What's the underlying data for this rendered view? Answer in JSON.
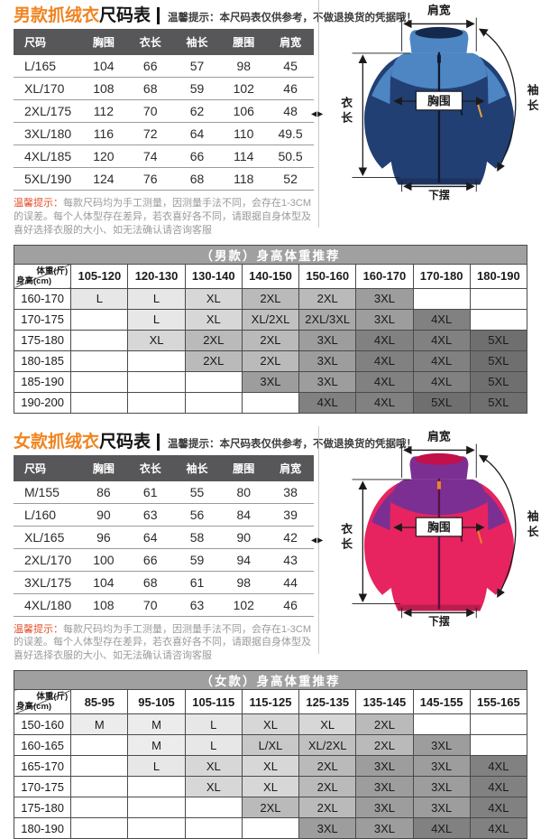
{
  "ui": {
    "divider_handle": "◀▶"
  },
  "colors": {
    "accent_orange": "#f08421",
    "note_red": "#e4502e",
    "size_table_header_bg": "#57575a",
    "rec_title_bg": "#a0a0a0",
    "size_shades": {
      "M": "#ececec",
      "L": "#e7e7e7",
      "XL": "#d7d7d7",
      "L/XL": "#c8c8c8",
      "XL/2XL": "#c0c0c0",
      "2XL": "#bababa",
      "2XL/3XL": "#a9a9a9",
      "3XL": "#9d9d9d",
      "4XL": "#818181",
      "5XL": "#6f6f6f"
    }
  },
  "sections": [
    {
      "id": "men",
      "title_accent": "男款抓绒衣",
      "title_rest": "尺码表",
      "title_note": "温馨提示：本尺码表仅供参考，不做退换货的凭据哦！",
      "size_table": {
        "headers": [
          "尺码",
          "胸围",
          "衣长",
          "袖长",
          "腰围",
          "肩宽"
        ],
        "rows": [
          [
            "L/165",
            "104",
            "66",
            "57",
            "98",
            "45"
          ],
          [
            "XL/170",
            "108",
            "68",
            "59",
            "102",
            "46"
          ],
          [
            "2XL/175",
            "112",
            "70",
            "62",
            "106",
            "48"
          ],
          [
            "3XL/180",
            "116",
            "72",
            "64",
            "110",
            "49.5"
          ],
          [
            "4XL/185",
            "120",
            "74",
            "66",
            "114",
            "50.5"
          ],
          [
            "5XL/190",
            "124",
            "76",
            "68",
            "118",
            "52"
          ]
        ]
      },
      "note_label": "温馨提示：",
      "note_text": "每款尺码均为手工测量，因测量手法不同，会存在1-3CM的误差。每个人体型存在差异，若衣喜好各不同，请跟据自身体型及喜好选择衣服的大小、如无法确认请咨询客服",
      "jacket": {
        "label_shoulder": "肩宽",
        "label_length": "衣长",
        "label_chest": "胸围",
        "label_sleeve": "袖长",
        "label_hem": "下摆",
        "yoke_color": "#4d86c3",
        "body_color": "#223f73",
        "collar_inner": "#15294e",
        "zip_color": "#101a30",
        "pull_color": "#e8a33d"
      },
      "rec_table": {
        "title": "（男款）身高体重推荐",
        "corner_top": "体重(斤)",
        "corner_bottom": "身高(cm)",
        "weight_cols": [
          "105-120",
          "120-130",
          "130-140",
          "140-150",
          "150-160",
          "160-170",
          "170-180",
          "180-190"
        ],
        "rows": [
          {
            "height": "160-170",
            "cells": [
              "L",
              "L",
              "XL",
              "2XL",
              "2XL",
              "3XL",
              "",
              ""
            ]
          },
          {
            "height": "170-175",
            "cells": [
              "",
              "L",
              "XL",
              "XL/2XL",
              "2XL/3XL",
              "3XL",
              "4XL",
              ""
            ]
          },
          {
            "height": "175-180",
            "cells": [
              "",
              "XL",
              "2XL",
              "2XL",
              "3XL",
              "4XL",
              "4XL",
              "5XL"
            ]
          },
          {
            "height": "180-185",
            "cells": [
              "",
              "",
              "2XL",
              "2XL",
              "3XL",
              "4XL",
              "4XL",
              "5XL"
            ]
          },
          {
            "height": "185-190",
            "cells": [
              "",
              "",
              "",
              "3XL",
              "3XL",
              "4XL",
              "4XL",
              "5XL"
            ]
          },
          {
            "height": "190-200",
            "cells": [
              "",
              "",
              "",
              "",
              "4XL",
              "4XL",
              "5XL",
              "5XL"
            ]
          }
        ]
      }
    },
    {
      "id": "women",
      "title_accent": "女款抓绒衣",
      "title_rest": "尺码表",
      "title_note": "温馨提示：本尺码表仅供参考，不做退换货的凭据哦！",
      "size_table": {
        "headers": [
          "尺码",
          "胸围",
          "衣长",
          "袖长",
          "腰围",
          "肩宽"
        ],
        "rows": [
          [
            "M/155",
            "86",
            "61",
            "55",
            "80",
            "38"
          ],
          [
            "L/160",
            "90",
            "63",
            "56",
            "84",
            "39"
          ],
          [
            "XL/165",
            "96",
            "64",
            "58",
            "90",
            "42"
          ],
          [
            "2XL/170",
            "100",
            "66",
            "59",
            "94",
            "43"
          ],
          [
            "3XL/175",
            "104",
            "68",
            "61",
            "98",
            "44"
          ],
          [
            "4XL/180",
            "108",
            "70",
            "63",
            "102",
            "46"
          ]
        ]
      },
      "note_label": "温馨提示：",
      "note_text": "每款尺码均为手工测量，因测量手法不同，会存在1-3CM的误差。每个人体型存在差异，若衣喜好各不同，请跟据自身体型及喜好选择衣服的大小、如无法确认请咨询客服",
      "jacket": {
        "label_shoulder": "肩宽",
        "label_length": "衣长",
        "label_chest": "胸围",
        "label_sleeve": "袖长",
        "label_hem": "下摆",
        "yoke_color": "#7c2f92",
        "body_color": "#e72460",
        "collar_inner": "#c2104a",
        "zip_color": "#5a1040",
        "pull_color": "#f08421"
      },
      "rec_table": {
        "title": "（女款）身高体重推荐",
        "corner_top": "体重(斤)",
        "corner_bottom": "身高(cm)",
        "weight_cols": [
          "85-95",
          "95-105",
          "105-115",
          "115-125",
          "125-135",
          "135-145",
          "145-155",
          "155-165"
        ],
        "rows": [
          {
            "height": "150-160",
            "cells": [
              "M",
              "M",
              "L",
              "XL",
              "XL",
              "2XL",
              "",
              ""
            ]
          },
          {
            "height": "160-165",
            "cells": [
              "",
              "M",
              "L",
              "L/XL",
              "XL/2XL",
              "2XL",
              "3XL",
              ""
            ]
          },
          {
            "height": "165-170",
            "cells": [
              "",
              "L",
              "XL",
              "XL",
              "2XL",
              "3XL",
              "3XL",
              "4XL"
            ]
          },
          {
            "height": "170-175",
            "cells": [
              "",
              "",
              "XL",
              "XL",
              "2XL",
              "3XL",
              "3XL",
              "4XL"
            ]
          },
          {
            "height": "175-180",
            "cells": [
              "",
              "",
              "",
              "2XL",
              "2XL",
              "3XL",
              "3XL",
              "4XL"
            ]
          },
          {
            "height": "180-190",
            "cells": [
              "",
              "",
              "",
              "",
              "3XL",
              "3XL",
              "4XL",
              "4XL"
            ]
          }
        ]
      }
    }
  ]
}
